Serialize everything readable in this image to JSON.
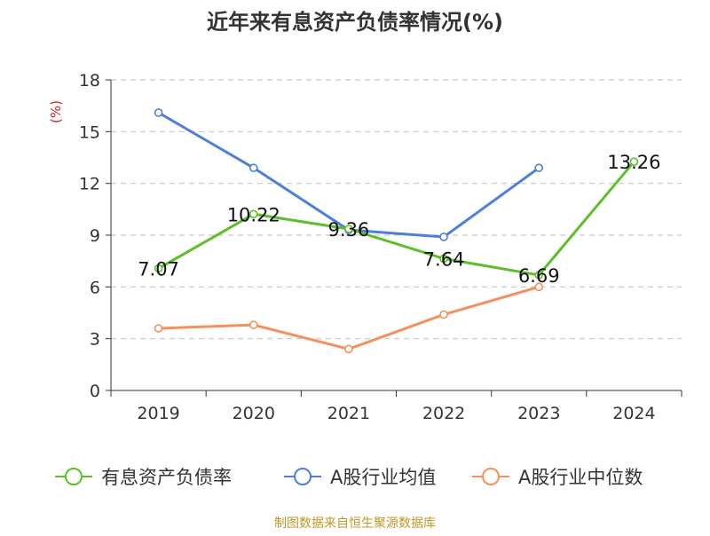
{
  "chart_data": {
    "type": "line",
    "title": "近年来有息资产负债率情况(%)",
    "ylabel": "(%)",
    "xlabel": "",
    "categories": [
      "2019",
      "2020",
      "2021",
      "2022",
      "2023",
      "2024"
    ],
    "ylim": [
      0,
      18
    ],
    "yticks": [
      0,
      3,
      6,
      9,
      12,
      15,
      18
    ],
    "grid": true,
    "legend_position": "bottom",
    "series": [
      {
        "name": "有息资产负债率",
        "color": "#5dbe2a",
        "values": [
          7.07,
          10.22,
          9.36,
          7.64,
          6.69,
          13.26
        ],
        "labels": [
          "7.07",
          "10.22",
          "9.36",
          "7.64",
          "6.69",
          "13.26"
        ]
      },
      {
        "name": "A股行业均值",
        "color": "#4e7fd8",
        "values": [
          16.1,
          12.9,
          9.3,
          8.9,
          12.9,
          null
        ]
      },
      {
        "name": "A股行业中位数",
        "color": "#f5905c",
        "values": [
          3.6,
          3.8,
          2.4,
          4.4,
          6.0,
          null
        ]
      }
    ]
  },
  "source_note": "制图数据来自恒生聚源数据库",
  "colors": {
    "axis": "#333333",
    "grid": "#c8c8c8",
    "ylabel": "#d42020",
    "source": "#c0972a"
  }
}
